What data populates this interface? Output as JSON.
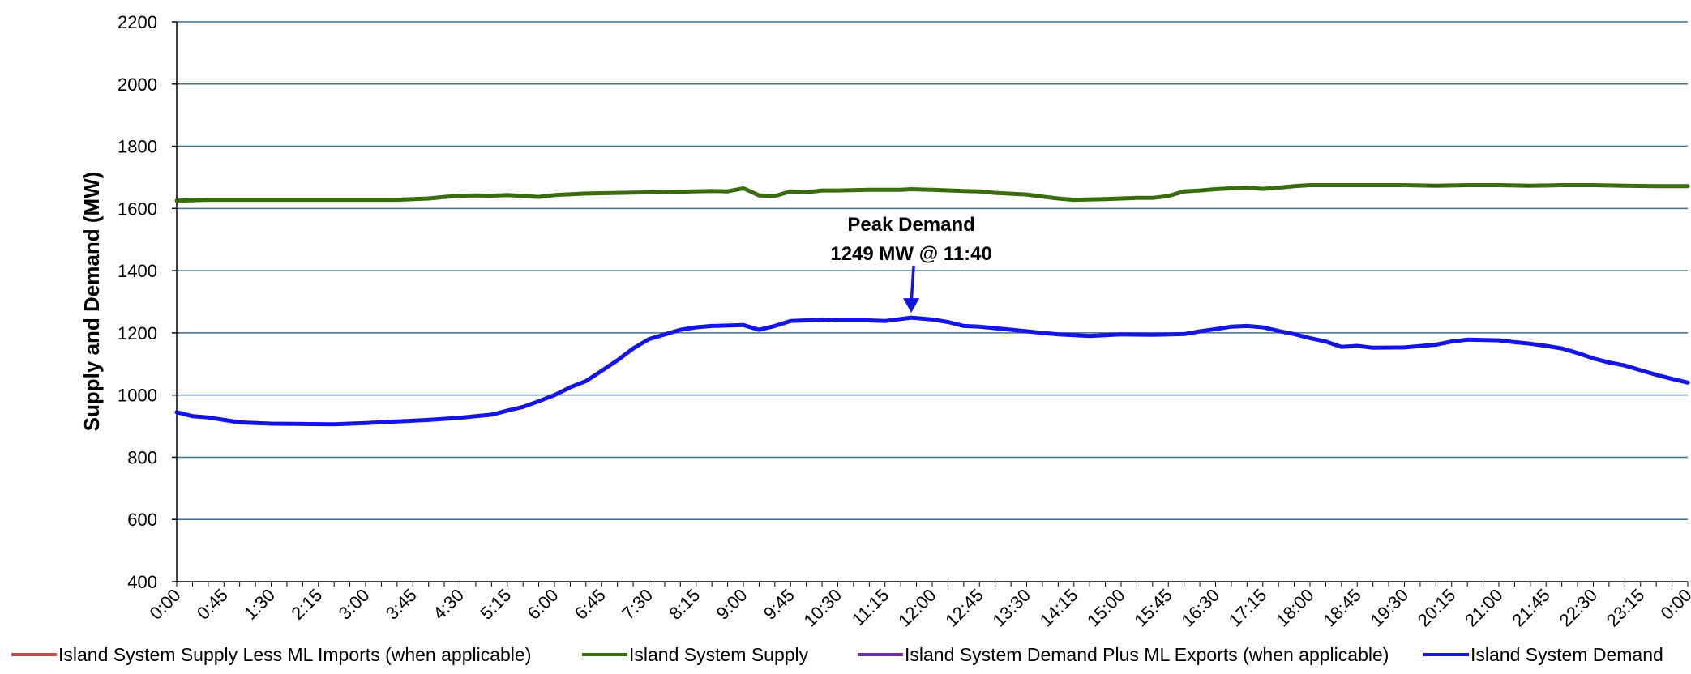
{
  "chart_data": {
    "type": "line",
    "xlabel": "",
    "ylabel": "Supply and Demand (MW)",
    "ylim": [
      400,
      2200
    ],
    "yticks": [
      400,
      600,
      800,
      1000,
      1200,
      1400,
      1600,
      1800,
      2000,
      2200
    ],
    "xlim": [
      "0:00",
      "24:00"
    ],
    "xtick_labels": [
      "0:00",
      "0:45",
      "1:30",
      "2:15",
      "3:00",
      "3:45",
      "4:30",
      "5:15",
      "6:00",
      "6:45",
      "7:30",
      "8:15",
      "9:00",
      "9:45",
      "10:30",
      "11:15",
      "12:00",
      "12:45",
      "13:30",
      "14:15",
      "15:00",
      "15:45",
      "16:30",
      "17:15",
      "18:00",
      "18:45",
      "19:30",
      "20:15",
      "21:00",
      "21:45",
      "22:30",
      "23:15",
      "0:00"
    ],
    "grid": true,
    "legend_position": "bottom",
    "colors": {
      "supply_less_imports": "#c0504d",
      "supply": "#3a6b0f",
      "demand_plus_exports": "#7030a0",
      "demand": "#1414e6",
      "grid": "#3e6b8a"
    },
    "series": [
      {
        "name": "Island System Supply Less ML Imports (when applicable)",
        "x": [],
        "values": []
      },
      {
        "name": "Island System Supply",
        "x": [
          "0:00",
          "0:30",
          "1:00",
          "1:30",
          "2:00",
          "2:30",
          "3:00",
          "3:30",
          "3:45",
          "4:00",
          "4:15",
          "4:30",
          "4:45",
          "5:00",
          "5:15",
          "5:30",
          "5:45",
          "6:00",
          "6:30",
          "7:00",
          "7:30",
          "8:00",
          "8:30",
          "8:45",
          "9:00",
          "9:15",
          "9:30",
          "9:45",
          "10:00",
          "10:15",
          "10:30",
          "11:00",
          "11:30",
          "11:40",
          "12:00",
          "12:30",
          "12:45",
          "13:00",
          "13:30",
          "13:45",
          "14:00",
          "14:15",
          "14:45",
          "15:00",
          "15:15",
          "15:30",
          "15:45",
          "16:00",
          "16:15",
          "16:30",
          "16:45",
          "17:00",
          "17:15",
          "17:30",
          "17:45",
          "18:00",
          "18:30",
          "19:00",
          "19:30",
          "20:00",
          "20:30",
          "21:00",
          "21:30",
          "22:00",
          "22:30",
          "23:00",
          "23:30",
          "24:00"
        ],
        "values": [
          1625,
          1628,
          1628,
          1628,
          1628,
          1628,
          1628,
          1628,
          1630,
          1632,
          1637,
          1641,
          1642,
          1641,
          1643,
          1640,
          1637,
          1643,
          1648,
          1650,
          1652,
          1654,
          1656,
          1655,
          1665,
          1642,
          1640,
          1655,
          1652,
          1658,
          1658,
          1660,
          1660,
          1662,
          1660,
          1656,
          1655,
          1650,
          1645,
          1638,
          1632,
          1628,
          1630,
          1632,
          1634,
          1634,
          1640,
          1655,
          1658,
          1662,
          1665,
          1667,
          1663,
          1667,
          1672,
          1675,
          1675,
          1675,
          1675,
          1673,
          1675,
          1675,
          1673,
          1675,
          1675,
          1673,
          1672,
          1672
        ]
      },
      {
        "name": "Island System Demand Plus ML Exports (when applicable)",
        "x": [],
        "values": []
      },
      {
        "name": "Island System Demand",
        "x": [
          "0:00",
          "0:15",
          "0:30",
          "0:45",
          "1:00",
          "1:30",
          "2:00",
          "2:30",
          "3:00",
          "3:30",
          "4:00",
          "4:30",
          "4:45",
          "5:00",
          "5:15",
          "5:30",
          "5:45",
          "6:00",
          "6:15",
          "6:30",
          "6:45",
          "7:00",
          "7:15",
          "7:30",
          "7:45",
          "8:00",
          "8:15",
          "8:30",
          "9:00",
          "9:15",
          "9:30",
          "9:45",
          "10:00",
          "10:15",
          "10:30",
          "11:00",
          "11:15",
          "11:40",
          "12:00",
          "12:15",
          "12:30",
          "12:45",
          "13:00",
          "13:30",
          "14:00",
          "14:30",
          "15:00",
          "15:30",
          "16:00",
          "16:15",
          "16:30",
          "16:45",
          "17:00",
          "17:15",
          "17:30",
          "17:45",
          "18:00",
          "18:15",
          "18:30",
          "18:45",
          "19:00",
          "19:30",
          "20:00",
          "20:15",
          "20:30",
          "21:00",
          "21:15",
          "21:30",
          "21:45",
          "22:00",
          "22:15",
          "22:30",
          "22:45",
          "23:00",
          "23:15",
          "23:30",
          "23:45",
          "24:00"
        ],
        "values": [
          945,
          932,
          928,
          920,
          912,
          908,
          907,
          906,
          910,
          915,
          920,
          927,
          932,
          937,
          950,
          962,
          980,
          1000,
          1025,
          1045,
          1078,
          1112,
          1150,
          1180,
          1195,
          1210,
          1218,
          1222,
          1225,
          1210,
          1222,
          1238,
          1240,
          1243,
          1240,
          1240,
          1238,
          1249,
          1243,
          1235,
          1222,
          1220,
          1215,
          1205,
          1195,
          1190,
          1195,
          1194,
          1196,
          1205,
          1212,
          1220,
          1222,
          1218,
          1206,
          1196,
          1183,
          1172,
          1155,
          1158,
          1152,
          1153,
          1162,
          1172,
          1178,
          1176,
          1170,
          1165,
          1158,
          1150,
          1135,
          1118,
          1105,
          1095,
          1080,
          1065,
          1052,
          1040
        ]
      }
    ],
    "annotations": [
      {
        "line1": "Peak Demand",
        "line2": "1249 MW @ 11:40",
        "x": "11:40",
        "y": 1249
      }
    ]
  }
}
